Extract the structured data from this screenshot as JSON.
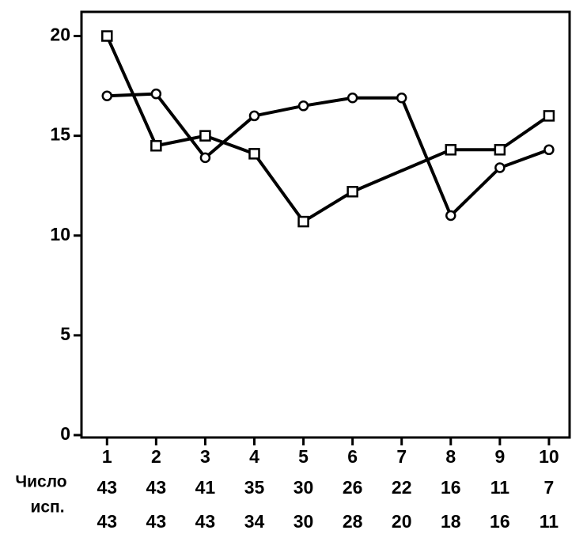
{
  "chart_data": {
    "type": "line",
    "xlim": [
      0.48,
      10.42
    ],
    "xticks": [
      1,
      2,
      3,
      4,
      5,
      6,
      7,
      8,
      9,
      10
    ],
    "ylim": [
      0,
      20.1
    ],
    "yticks": [
      0,
      5,
      10,
      15,
      20
    ],
    "series": [
      {
        "marker": "circle",
        "color": "#000000",
        "x": [
          1,
          2,
          3,
          4,
          5,
          6,
          7,
          8,
          9,
          10
        ],
        "values": [
          17.0,
          17.1,
          13.9,
          16.0,
          16.5,
          16.9,
          16.9,
          11.0,
          13.4,
          14.3
        ]
      },
      {
        "marker": "square",
        "color": "#000000",
        "x": [
          1,
          2,
          3,
          4,
          5,
          6,
          8,
          9,
          10
        ],
        "values": [
          20.0,
          14.5,
          15.0,
          14.1,
          10.7,
          12.2,
          14.3,
          14.3,
          16.0
        ]
      }
    ],
    "table": {
      "label": [
        "Число",
        "исп."
      ],
      "rows": [
        [
          43,
          43,
          41,
          35,
          30,
          26,
          22,
          16,
          11,
          7
        ],
        [
          43,
          43,
          43,
          34,
          30,
          28,
          20,
          18,
          16,
          11
        ]
      ]
    }
  }
}
